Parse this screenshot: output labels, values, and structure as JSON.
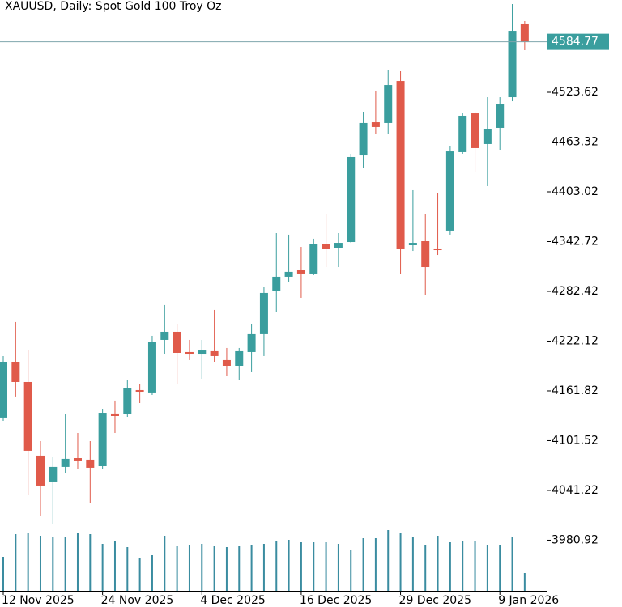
{
  "chart_data": {
    "type": "candlestick",
    "title": "XAUUSD, Daily:  Spot Gold 100 Troy Oz",
    "categories": [
      "12 Nov 2025",
      null,
      null,
      null,
      null,
      null,
      null,
      null,
      "24 Nov 2025",
      null,
      null,
      null,
      null,
      null,
      null,
      null,
      "4 Dec 2025",
      null,
      null,
      null,
      null,
      null,
      null,
      null,
      "16 Dec 2025",
      null,
      null,
      null,
      null,
      null,
      null,
      null,
      "29 Dec 2025",
      null,
      null,
      null,
      null,
      null,
      null,
      null,
      "9 Jan 2026",
      null,
      null
    ],
    "open": [
      4129.5,
      4197.1,
      4172.6,
      4083.4,
      4052.0,
      4069.7,
      4080.4,
      4078.5,
      4070.6,
      4134.4,
      4133.4,
      4162.8,
      4159.9,
      4223.6,
      4233.4,
      4208.9,
      4205.9,
      4209.9,
      4199.1,
      4192.2,
      4208.9,
      4230.5,
      4282.4,
      4300.1,
      4307.9,
      4304.0,
      4339.3,
      4334.4,
      4342.2,
      4447.1,
      4487.3,
      4486.4,
      4537.3,
      4338.3,
      4343.2,
      4333.4,
      4356.0,
      4451.1,
      4498.1,
      4460.9,
      4480.5,
      4517.7,
      4606.0
    ],
    "high": [
      4204.0,
      4245.2,
      4211.8,
      4101.0,
      4081.4,
      4133.4,
      4110.8,
      4101.0,
      4140.2,
      4150.1,
      4174.6,
      4169.7,
      4228.5,
      4265.8,
      4243.2,
      4223.6,
      4223.6,
      4259.9,
      4213.8,
      4213.8,
      4243.2,
      4287.3,
      4353.0,
      4351.1,
      4336.3,
      4346.2,
      4375.6,
      4353.0,
      4449.1,
      4500.1,
      4525.6,
      4550.1,
      4549.1,
      4405.0,
      4375.6,
      4402.0,
      4458.9,
      4498.1,
      4500.1,
      4517.7,
      4517.7,
      4630.5,
      4609.9
    ],
    "low": [
      4125.5,
      4155.0,
      4035.3,
      4010.8,
      4000.0,
      4061.8,
      4066.7,
      4025.5,
      4066.7,
      4110.8,
      4130.4,
      4147.1,
      4156.9,
      4206.9,
      4169.7,
      4199.1,
      4176.5,
      4197.1,
      4179.5,
      4174.6,
      4184.4,
      4204.0,
      4257.9,
      4294.2,
      4274.6,
      4302.0,
      4311.8,
      4311.8,
      4341.2,
      4431.5,
      4473.6,
      4473.6,
      4304.0,
      4331.4,
      4277.5,
      4326.5,
      4351.1,
      4449.1,
      4426.6,
      4409.9,
      4454.0,
      4512.8,
      4574.6
    ],
    "close": [
      4197.1,
      4172.6,
      4089.3,
      4047.1,
      4069.7,
      4079.5,
      4077.5,
      4068.7,
      4135.3,
      4131.4,
      4164.8,
      4160.8,
      4221.6,
      4233.4,
      4207.9,
      4205.9,
      4210.8,
      4204.0,
      4192.2,
      4209.9,
      4230.5,
      4280.5,
      4300.1,
      4306.0,
      4304.0,
      4339.3,
      4333.4,
      4341.2,
      4445.2,
      4486.4,
      4481.5,
      4532.4,
      4333.4,
      4341.2,
      4311.8,
      4332.4,
      4452.0,
      4495.2,
      4456.0,
      4478.5,
      4508.9,
      4598.1,
      4584.77
    ],
    "volume": [
      42,
      70,
      71,
      68,
      66,
      67,
      71,
      70,
      58,
      62,
      54,
      40,
      44,
      68,
      55,
      57,
      58,
      55,
      54,
      55,
      57,
      58,
      62,
      63,
      60,
      60,
      60,
      58,
      51,
      65,
      65,
      75,
      72,
      67,
      56,
      68,
      60,
      61,
      62,
      57,
      57,
      66,
      22
    ],
    "volume_lim": [
      0,
      100
    ],
    "up_color": "#3a9e9e",
    "down_color": "#e05a4a",
    "volume_color": "#3a8ca0",
    "price_line": 4584.77,
    "ylim": [
      3919.6,
      4635.4
    ],
    "yticks": [
      3980.92,
      4041.22,
      4101.52,
      4161.82,
      4222.12,
      4282.42,
      4342.72,
      4403.02,
      4463.32,
      4523.62
    ]
  }
}
